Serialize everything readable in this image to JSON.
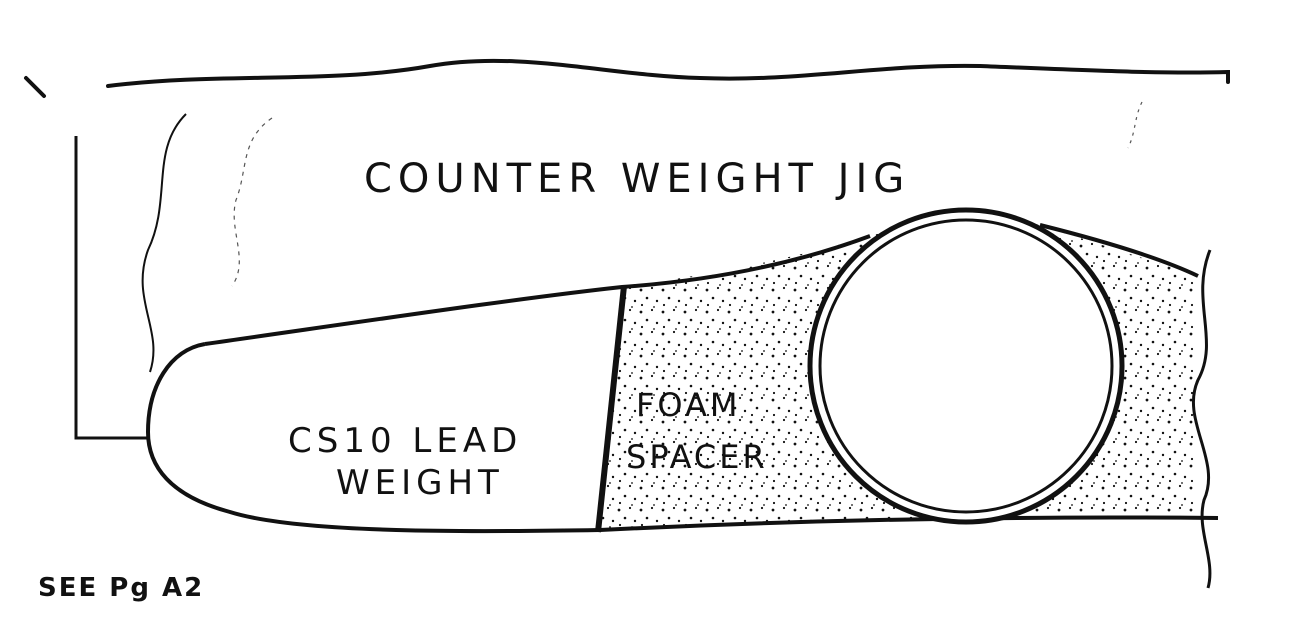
{
  "labels": {
    "jig": "COUNTER WEIGHT JIG",
    "lead_weight_line1": "CS10 LEAD",
    "lead_weight_line2": "WEIGHT",
    "foam_line1": "FOAM",
    "foam_line2": "SPACER",
    "reference": "SEE Pg A2"
  },
  "colors": {
    "ink": "#111111",
    "paper": "#ffffff"
  }
}
